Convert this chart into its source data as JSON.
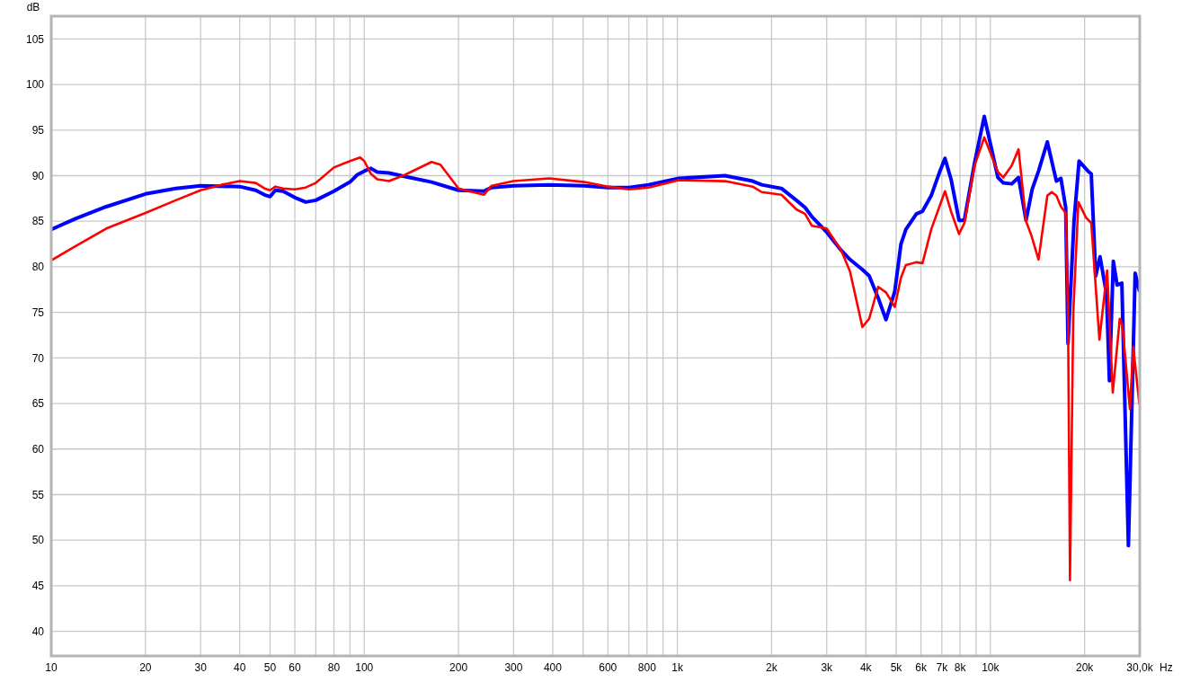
{
  "chart_data": {
    "type": "line",
    "xlabel": "Hz",
    "ylabel": "dB",
    "log": "x",
    "grid": true,
    "line_style": "solid",
    "xlim": [
      10,
      30000
    ],
    "ylim": [
      37.3,
      107.5
    ],
    "xticks": [
      10,
      20,
      30,
      40,
      50,
      60,
      {
        "value": 70,
        "label": null
      },
      80,
      {
        "value": 90,
        "label": null
      },
      100,
      200,
      300,
      400,
      {
        "value": 500,
        "label": null
      },
      600,
      {
        "value": 700,
        "label": null
      },
      800,
      {
        "value": 900,
        "label": null
      },
      {
        "value": 1000,
        "label": "1k"
      },
      {
        "value": 2000,
        "label": "2k"
      },
      {
        "value": 3000,
        "label": "3k"
      },
      {
        "value": 4000,
        "label": "4k"
      },
      {
        "value": 5000,
        "label": "5k"
      },
      {
        "value": 6000,
        "label": "6k"
      },
      {
        "value": 7000,
        "label": "7k"
      },
      {
        "value": 8000,
        "label": "8k"
      },
      {
        "value": 9000,
        "label": null
      },
      {
        "value": 10000,
        "label": "10k"
      },
      {
        "value": 20000,
        "label": "20k"
      },
      {
        "value": 30000,
        "label": "30,0k"
      }
    ],
    "yticks": [
      40,
      45,
      50,
      55,
      60,
      65,
      70,
      75,
      80,
      85,
      90,
      95,
      100,
      105
    ],
    "series": [
      {
        "color": "#0000ff",
        "x": [
          10,
          12,
          15,
          20,
          25,
          30,
          40,
          45,
          48,
          50,
          52,
          55,
          60,
          65,
          70,
          80,
          90,
          95,
          100,
          105,
          110,
          120,
          135,
          164,
          200,
          241,
          255,
          300,
          390,
          505,
          600,
          700,
          810,
          1010,
          1420,
          1740,
          1860,
          2150,
          2400,
          2560,
          2690,
          3000,
          3340,
          3560,
          3900,
          4100,
          4380,
          4640,
          4950,
          5180,
          5370,
          5800,
          6070,
          6470,
          6900,
          7160,
          7500,
          7940,
          8260,
          8900,
          9560,
          10000,
          10570,
          11000,
          11700,
          12300,
          13000,
          13600,
          14250,
          15200,
          16250,
          16800,
          17400,
          17700,
          18500,
          19200,
          20500,
          21000,
          21700,
          22400,
          23500,
          24000,
          24700,
          25400,
          26300,
          27600,
          29000,
          29900
        ],
        "values": [
          84.1,
          85.3,
          86.6,
          88.0,
          88.6,
          88.9,
          88.8,
          88.4,
          87.9,
          87.7,
          88.4,
          88.3,
          87.6,
          87.1,
          87.3,
          88.3,
          89.3,
          90.1,
          90.5,
          90.8,
          90.4,
          90.3,
          89.9,
          89.3,
          88.4,
          88.3,
          88.7,
          88.9,
          89.0,
          88.9,
          88.7,
          88.7,
          89.0,
          89.7,
          90.0,
          89.4,
          89.0,
          88.6,
          87.3,
          86.5,
          85.5,
          83.8,
          81.8,
          80.8,
          79.7,
          79.0,
          76.6,
          74.2,
          77.3,
          82.5,
          84.1,
          85.8,
          86.1,
          87.8,
          90.5,
          91.9,
          89.5,
          85.1,
          85.1,
          91.4,
          96.5,
          93.5,
          89.8,
          89.2,
          89.1,
          89.8,
          85.1,
          88.5,
          90.5,
          93.7,
          89.4,
          89.7,
          86.5,
          71.6,
          85.0,
          91.6,
          90.5,
          90.2,
          79.0,
          81.1,
          77.0,
          67.5,
          80.6,
          78.0,
          78.2,
          49.4,
          79.3,
          77.4
        ]
      },
      {
        "color": "#ff0000",
        "x": [
          10,
          12,
          15,
          20,
          25,
          30,
          35,
          40,
          45,
          48,
          50,
          52,
          55,
          60,
          65,
          70,
          80,
          90,
          97,
          100,
          105,
          110,
          120,
          135,
          164,
          175,
          200,
          241,
          255,
          300,
          390,
          505,
          600,
          700,
          810,
          1010,
          1420,
          1740,
          1860,
          2150,
          2400,
          2560,
          2690,
          3000,
          3340,
          3560,
          3900,
          4100,
          4380,
          4640,
          4950,
          5180,
          5370,
          5800,
          6070,
          6470,
          7160,
          7500,
          7940,
          8260,
          8900,
          9560,
          10570,
          11000,
          11700,
          12300,
          13000,
          13500,
          14250,
          15200,
          15700,
          16250,
          16800,
          17400,
          17700,
          17960,
          18400,
          19100,
          20200,
          21000,
          22300,
          23600,
          24600,
          25900,
          26400,
          27900,
          28600,
          29900
        ],
        "values": [
          80.7,
          82.3,
          84.2,
          85.9,
          87.3,
          88.4,
          89.0,
          89.4,
          89.2,
          88.6,
          88.4,
          88.8,
          88.6,
          88.5,
          88.7,
          89.2,
          90.9,
          91.6,
          92.0,
          91.6,
          90.2,
          89.6,
          89.4,
          90.1,
          91.5,
          91.2,
          88.6,
          87.9,
          88.9,
          89.4,
          89.7,
          89.3,
          88.8,
          88.5,
          88.7,
          89.5,
          89.4,
          88.8,
          88.2,
          87.9,
          86.3,
          85.8,
          84.5,
          84.2,
          81.8,
          79.5,
          73.4,
          74.3,
          77.8,
          77.2,
          75.6,
          78.8,
          80.2,
          80.5,
          80.4,
          84.1,
          88.3,
          86.0,
          83.6,
          84.8,
          91.1,
          94.2,
          90.4,
          89.8,
          91.1,
          92.9,
          85.0,
          83.5,
          80.8,
          87.8,
          88.2,
          87.8,
          86.6,
          85.9,
          75.0,
          45.6,
          75.0,
          87.1,
          85.4,
          84.8,
          72.0,
          79.6,
          66.2,
          74.3,
          73.6,
          64.4,
          71.2,
          65.0
        ]
      }
    ]
  }
}
